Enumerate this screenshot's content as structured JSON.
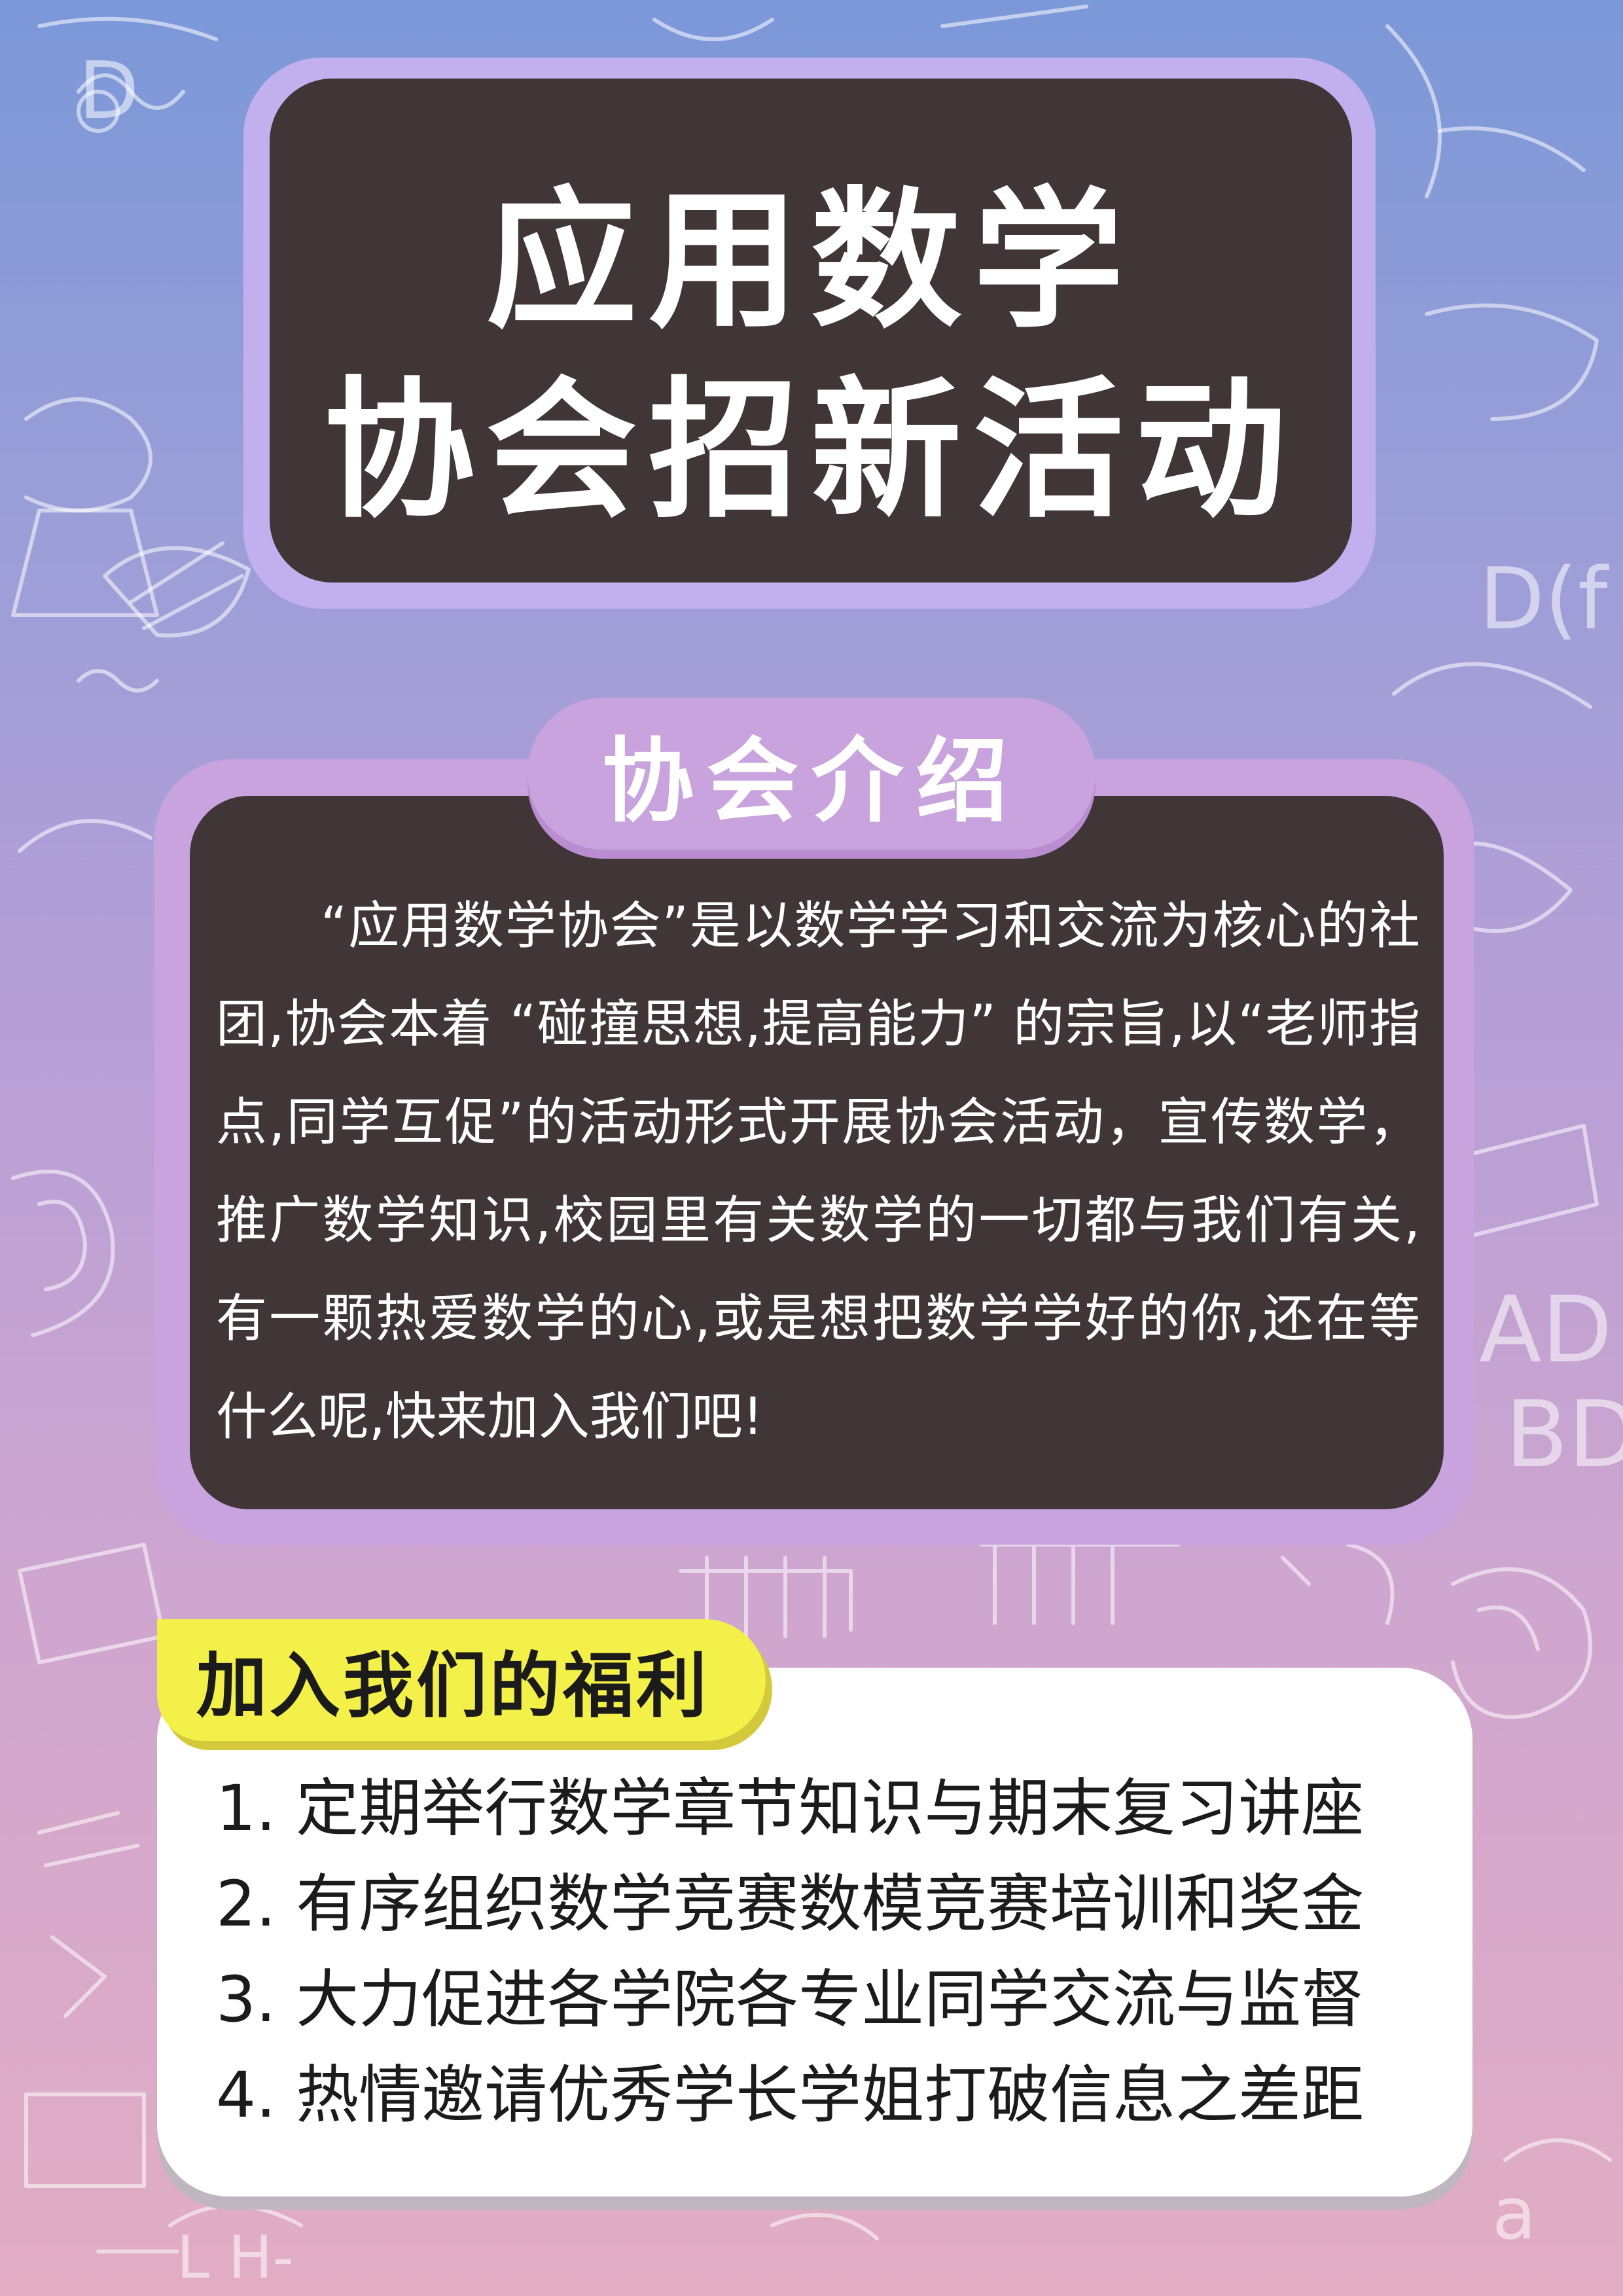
{
  "title": {
    "line1": "应用数学",
    "line2": "协会招新活动"
  },
  "intro": {
    "tab_label": "协会介绍",
    "text": "“应用数学协会”是以数学学习和交流为核心的社团,协会本着 “碰撞思想,提高能力” 的宗旨,以“老师指点,同学互促”的活动形式开展协会活动，宣传数学，推广数学知识,校园里有关数学的一切都与我们有关,有一颗热爱数学的心,或是想把数学学好的你,还在等什么呢,快来加入我们吧!"
  },
  "benefits": {
    "tag_label": "加入我们的福利",
    "items": [
      "1. 定期举行数学章节知识与期末复习讲座",
      "2. 有序组织数学竞赛数模竞赛培训和奖金",
      "3. 大力促进各学院各专业同学交流与监督",
      "4. 热情邀请优秀学长学姐打破信息之差距"
    ]
  },
  "colors": {
    "background_top": "#7b98d8",
    "background_bottom": "#e2adc3",
    "dark_panel": "#403638",
    "title_frame": "#c2b0ee",
    "intro_frame": "#c9a3de",
    "tag_yellow": "#f4f04a"
  }
}
